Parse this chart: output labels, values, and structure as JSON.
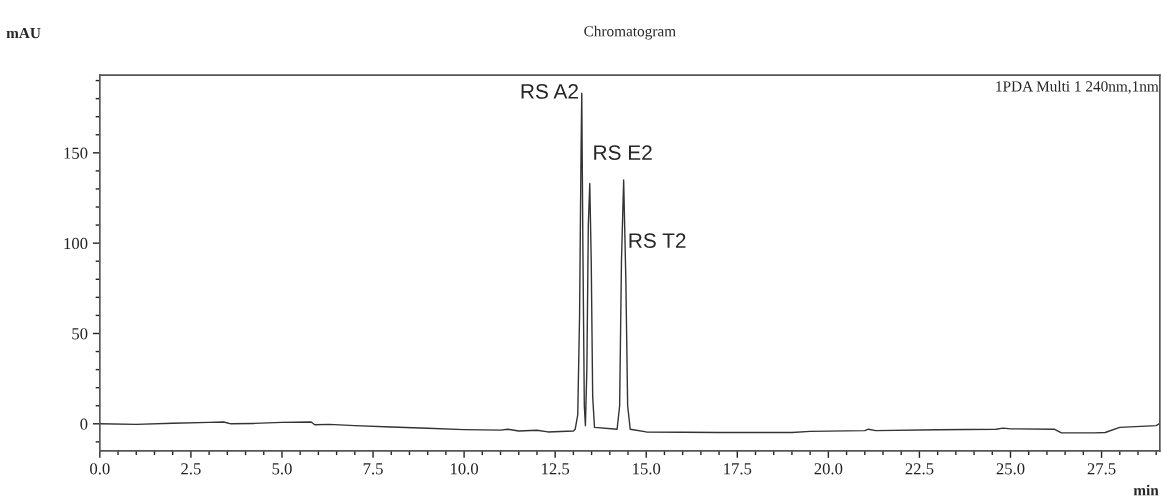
{
  "chart_data": {
    "type": "line",
    "title": "Chromatogram",
    "xlabel": "min",
    "ylabel": "mAU",
    "xlim": [
      0,
      29.1
    ],
    "ylim": [
      -15,
      193
    ],
    "xticks": [
      {
        "value": 0,
        "label": "0.0"
      },
      {
        "value": 0.5,
        "label": null
      },
      {
        "value": 1,
        "label": null
      },
      {
        "value": 1.5,
        "label": null
      },
      {
        "value": 2,
        "label": null
      },
      {
        "value": 2.5,
        "label": "2.5"
      },
      {
        "value": 3,
        "label": null
      },
      {
        "value": 3.5,
        "label": null
      },
      {
        "value": 4,
        "label": null
      },
      {
        "value": 4.5,
        "label": null
      },
      {
        "value": 5,
        "label": "5.0"
      },
      {
        "value": 5.5,
        "label": null
      },
      {
        "value": 6,
        "label": null
      },
      {
        "value": 6.5,
        "label": null
      },
      {
        "value": 7,
        "label": null
      },
      {
        "value": 7.5,
        "label": "7.5"
      },
      {
        "value": 8,
        "label": null
      },
      {
        "value": 8.5,
        "label": null
      },
      {
        "value": 9,
        "label": null
      },
      {
        "value": 9.5,
        "label": null
      },
      {
        "value": 10,
        "label": "10.0"
      },
      {
        "value": 10.5,
        "label": null
      },
      {
        "value": 11,
        "label": null
      },
      {
        "value": 11.5,
        "label": null
      },
      {
        "value": 12,
        "label": null
      },
      {
        "value": 12.5,
        "label": "12.5"
      },
      {
        "value": 13,
        "label": null
      },
      {
        "value": 13.5,
        "label": null
      },
      {
        "value": 14,
        "label": null
      },
      {
        "value": 14.5,
        "label": null
      },
      {
        "value": 15,
        "label": "15.0"
      },
      {
        "value": 15.5,
        "label": null
      },
      {
        "value": 16,
        "label": null
      },
      {
        "value": 16.5,
        "label": null
      },
      {
        "value": 17,
        "label": null
      },
      {
        "value": 17.5,
        "label": "17.5"
      },
      {
        "value": 18,
        "label": null
      },
      {
        "value": 18.5,
        "label": null
      },
      {
        "value": 19,
        "label": null
      },
      {
        "value": 19.5,
        "label": null
      },
      {
        "value": 20,
        "label": "20.0"
      },
      {
        "value": 20.5,
        "label": null
      },
      {
        "value": 21,
        "label": null
      },
      {
        "value": 21.5,
        "label": null
      },
      {
        "value": 22,
        "label": null
      },
      {
        "value": 22.5,
        "label": "22.5"
      },
      {
        "value": 23,
        "label": null
      },
      {
        "value": 23.5,
        "label": null
      },
      {
        "value": 24,
        "label": null
      },
      {
        "value": 24.5,
        "label": null
      },
      {
        "value": 25,
        "label": "25.0"
      },
      {
        "value": 25.5,
        "label": null
      },
      {
        "value": 26,
        "label": null
      },
      {
        "value": 26.5,
        "label": null
      },
      {
        "value": 27,
        "label": null
      },
      {
        "value": 27.5,
        "label": "27.5"
      },
      {
        "value": 28,
        "label": null
      },
      {
        "value": 28.5,
        "label": null
      },
      {
        "value": 29,
        "label": null
      }
    ],
    "yticks": [
      {
        "value": -10,
        "label": null
      },
      0,
      {
        "value": 10,
        "label": null
      },
      {
        "value": 20,
        "label": null
      },
      {
        "value": 30,
        "label": null
      },
      {
        "value": 40,
        "label": null
      },
      50,
      {
        "value": 60,
        "label": null
      },
      {
        "value": 70,
        "label": null
      },
      {
        "value": 80,
        "label": null
      },
      {
        "value": 90,
        "label": null
      },
      100,
      {
        "value": 110,
        "label": null
      },
      {
        "value": 120,
        "label": null
      },
      {
        "value": 130,
        "label": null
      },
      {
        "value": 140,
        "label": null
      },
      150,
      {
        "value": 160,
        "label": null
      },
      {
        "value": 170,
        "label": null
      },
      {
        "value": 180,
        "label": null
      },
      {
        "value": 190,
        "label": null
      }
    ],
    "grid": false,
    "series": [
      {
        "color": "#333333",
        "x": [
          0,
          1,
          2,
          3,
          3.4,
          3.6,
          4.2,
          5,
          5.8,
          5.9,
          6.3,
          7,
          8,
          9,
          10,
          11,
          11.2,
          11.5,
          12,
          12.3,
          13,
          13.05,
          13.12,
          13.17,
          13.21,
          13.23,
          13.26,
          13.3,
          13.33,
          13.37,
          13.41,
          13.45,
          13.49,
          13.53,
          13.58,
          14.2,
          14.27,
          14.32,
          14.38,
          14.44,
          14.49,
          14.56,
          15,
          17,
          19,
          19.5,
          21,
          21.1,
          21.3,
          23,
          24.6,
          24.8,
          25,
          26.2,
          26.4,
          27.3,
          27.6,
          28,
          29,
          29.1
        ],
        "values": [
          0,
          -0.3,
          0.3,
          0.8,
          1,
          0,
          0.2,
          0.8,
          1,
          -0.5,
          -0.3,
          -1,
          -1.8,
          -2.5,
          -3.2,
          -3.5,
          -3,
          -4,
          -3.6,
          -4.5,
          -4,
          -3,
          5,
          60,
          150,
          183,
          100,
          10,
          -1,
          30,
          110,
          133,
          90,
          15,
          -2,
          -3,
          10,
          90,
          135,
          80,
          10,
          -3,
          -4.5,
          -4.8,
          -4.8,
          -4.2,
          -3.8,
          -3,
          -3.8,
          -3.3,
          -3,
          -2.4,
          -2.8,
          -3,
          -5,
          -5,
          -4.8,
          -2,
          -1,
          0.3
        ]
      }
    ],
    "annotations": [
      {
        "text": "RS A2",
        "x": 13.23,
        "y": 183
      },
      {
        "text": "RS E2",
        "x": 13.45,
        "y": 133
      },
      {
        "text": "RS T2",
        "x": 14.38,
        "y": 135
      },
      "1PDA Multi 1 240nm,1nm"
    ]
  }
}
